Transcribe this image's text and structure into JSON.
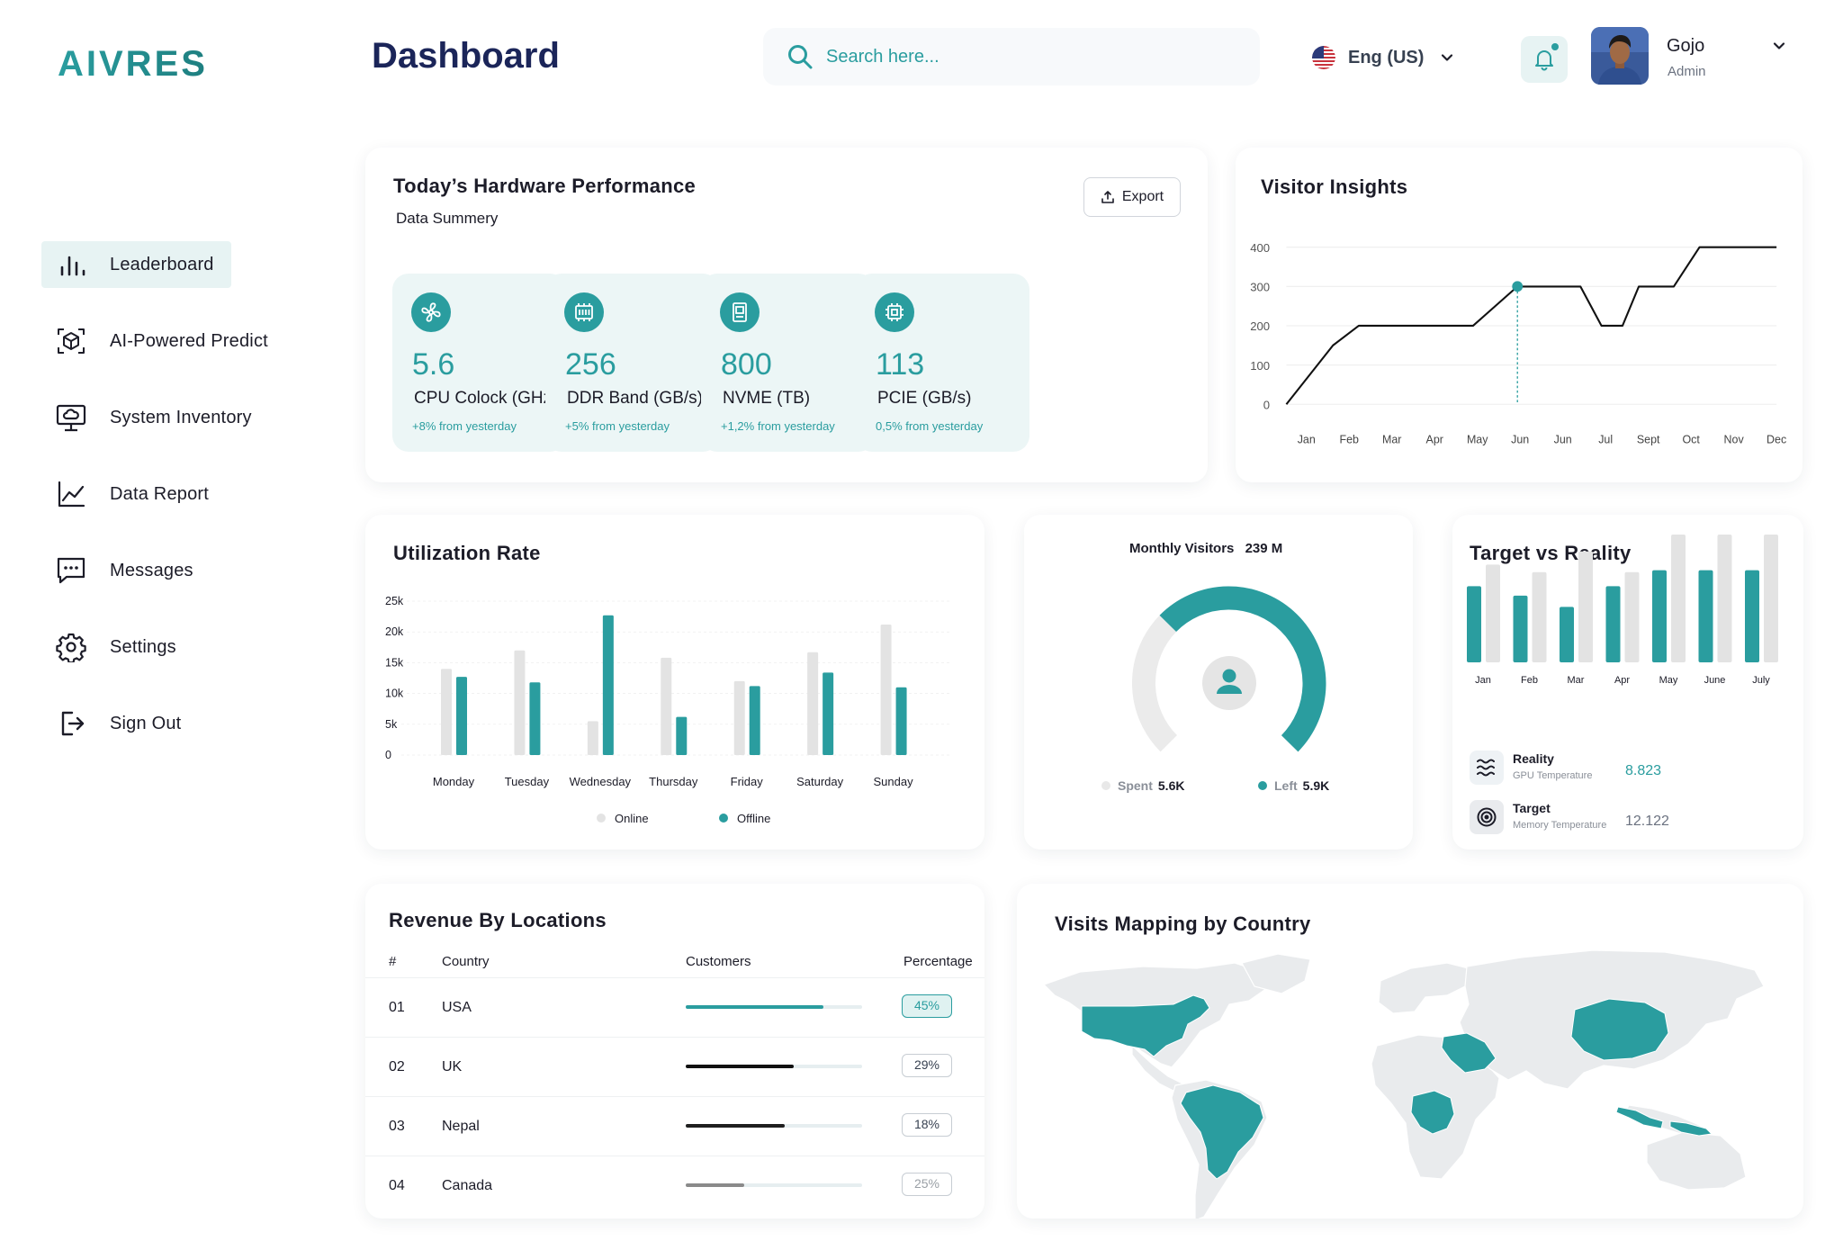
{
  "app": {
    "logo": "AIVRES",
    "title": "Dashboard"
  },
  "colors": {
    "accent": "#2a9d9f",
    "accent_light": "#ecf6f6",
    "navy": "#1b2559"
  },
  "sidebar": {
    "items": [
      {
        "label": "Leaderboard",
        "icon": "bar-chart-icon",
        "active": true
      },
      {
        "label": "AI-Powered Predict",
        "icon": "cube-scan-icon"
      },
      {
        "label": "System Inventory",
        "icon": "monitor-cloud-icon"
      },
      {
        "label": "Data Report",
        "icon": "line-chart-icon"
      },
      {
        "label": "Messages",
        "icon": "message-icon"
      },
      {
        "label": "Settings",
        "icon": "gear-icon"
      },
      {
        "label": "Sign Out",
        "icon": "sign-out-icon"
      }
    ]
  },
  "header": {
    "search_placeholder": "Search here...",
    "language": "Eng (US)",
    "user": {
      "name": "Gojo",
      "role": "Admin"
    }
  },
  "hardware": {
    "title": "Today’s Hardware Performance",
    "subtitle": "Data Summery",
    "export_label": "Export",
    "stats": [
      {
        "value": "5.6",
        "label": "CPU Colock (GHz)",
        "change": "+8% from yesterday",
        "icon": "fan-icon"
      },
      {
        "value": "256",
        "label": "DDR Band (GB/s)",
        "change": "+5% from yesterday",
        "icon": "memory-icon"
      },
      {
        "value": "800",
        "label": "NVME (TB)",
        "change": "+1,2% from yesterday",
        "icon": "ssd-icon"
      },
      {
        "value": "113",
        "label": "PCIE (GB/s)",
        "change": "0,5% from yesterday",
        "icon": "chip-icon"
      }
    ]
  },
  "visitor_insights": {
    "title": "Visitor Insights",
    "chart_data": {
      "type": "line",
      "x": [
        "Jan",
        "Feb",
        "Mar",
        "Apr",
        "May",
        "Jun",
        "Jun",
        "Jul",
        "Sept",
        "Oct",
        "Nov",
        "Dec"
      ],
      "yticks": [
        "400",
        "300",
        "200",
        "100",
        "0"
      ],
      "ylim": [
        0,
        400
      ],
      "points": [
        [
          0,
          0
        ],
        [
          1.0,
          150
        ],
        [
          1.55,
          200
        ],
        [
          2.6,
          200
        ],
        [
          3.65,
          200
        ],
        [
          4.0,
          200
        ],
        [
          4.95,
          300
        ],
        [
          5.45,
          300
        ],
        [
          5.95,
          300
        ],
        [
          6.3,
          300
        ],
        [
          6.75,
          200
        ],
        [
          7.2,
          200
        ],
        [
          7.55,
          300
        ],
        [
          8.3,
          300
        ],
        [
          8.85,
          400
        ],
        [
          10.5,
          400
        ]
      ],
      "highlight_index": 6
    }
  },
  "utilization": {
    "title": "Utilization Rate",
    "chart_data": {
      "type": "bar",
      "categories": [
        "Monday",
        "Tuesday",
        "Wednesday",
        "Thursday",
        "Friday",
        "Saturday",
        "Sunday"
      ],
      "yticks": [
        "25k",
        "20k",
        "15k",
        "10k",
        "5k",
        "0"
      ],
      "ylim": [
        0,
        25000
      ],
      "series": [
        {
          "name": "Online",
          "color": "#e3e3e3",
          "values": [
            14000,
            17000,
            5500,
            15800,
            12000,
            16700,
            21200
          ]
        },
        {
          "name": "Offline",
          "color": "#2a9d9f",
          "values": [
            12700,
            11800,
            22700,
            6200,
            11200,
            13400,
            11000
          ]
        }
      ]
    }
  },
  "monthly_visitors": {
    "label": "Monthly Visitors",
    "value": "239 M",
    "spent_label": "Spent",
    "spent_value": "5.6K",
    "left_label": "Left",
    "left_value": "5.9K",
    "chart_data": {
      "type": "pie",
      "spent": 5.6,
      "left": 5.9
    }
  },
  "target_reality": {
    "title": "Target vs Reality",
    "chart_data": {
      "type": "bar",
      "categories": [
        "Jan",
        "Feb",
        "Mar",
        "Apr",
        "May",
        "June",
        "July"
      ],
      "series": [
        {
          "name": "Reality",
          "color": "#2a9d9f",
          "values": [
            8.1,
            7.1,
            5.9,
            8.1,
            9.8,
            9.8,
            9.8
          ]
        },
        {
          "name": "Target",
          "color": "#e3e3e3",
          "values": [
            10.4,
            9.6,
            11.8,
            9.6,
            13.6,
            13.6,
            13.6
          ]
        }
      ]
    },
    "legend": [
      {
        "name": "Reality",
        "sub": "GPU Temperature",
        "value": "8.823",
        "icon": "waves-icon"
      },
      {
        "name": "Target",
        "sub": "Memory Temperature",
        "value": "12.122",
        "icon": "target-icon"
      }
    ]
  },
  "revenue": {
    "title": "Revenue By Locations",
    "columns": [
      "#",
      "Country",
      "Customers",
      "Percentage"
    ],
    "rows": [
      {
        "num": "01",
        "country": "USA",
        "percent": "45%",
        "fill": 0.78,
        "color": "#2a9d9f"
      },
      {
        "num": "02",
        "country": "UK",
        "percent": "29%",
        "fill": 0.61,
        "color": "#111111"
      },
      {
        "num": "03",
        "country": "Nepal",
        "percent": "18%",
        "fill": 0.56,
        "color": "#1f1f1f"
      },
      {
        "num": "04",
        "country": "Canada",
        "percent": "25%",
        "fill": 0.33,
        "color": "#8a8a8a"
      }
    ]
  },
  "map": {
    "title": "Visits Mapping by Country"
  }
}
